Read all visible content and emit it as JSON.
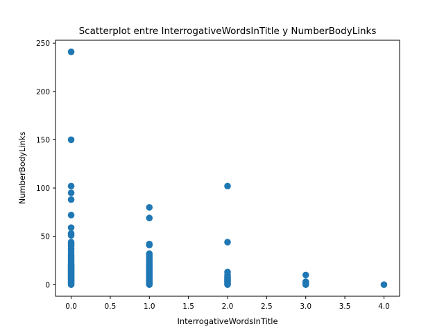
{
  "chart_data": {
    "type": "scatter",
    "title": "Scatterplot entre InterrogativeWordsInTitle y NumberBodyLinks",
    "xlabel": "InterrogativeWordsInTitle",
    "ylabel": "NumberBodyLinks",
    "xlim": [
      -0.2,
      4.2
    ],
    "ylim": [
      -12,
      253
    ],
    "xticks": [
      0.0,
      0.5,
      1.0,
      1.5,
      2.0,
      2.5,
      3.0,
      3.5,
      4.0
    ],
    "xtick_labels": [
      "0.0",
      "0.5",
      "1.0",
      "1.5",
      "2.0",
      "2.5",
      "3.0",
      "3.5",
      "4.0"
    ],
    "yticks": [
      0,
      50,
      100,
      150,
      200,
      250
    ],
    "ytick_labels": [
      "0",
      "50",
      "100",
      "150",
      "200",
      "250"
    ],
    "grid": false,
    "marker_color": "#1f77b4",
    "points": [
      [
        0,
        241
      ],
      [
        0,
        150
      ],
      [
        0,
        102
      ],
      [
        0,
        95
      ],
      [
        0,
        88
      ],
      [
        0,
        72
      ],
      [
        0,
        59
      ],
      [
        0,
        53
      ],
      [
        0,
        51
      ],
      [
        0,
        44
      ],
      [
        0,
        42
      ],
      [
        0,
        40
      ],
      [
        0,
        37
      ],
      [
        0,
        34
      ],
      [
        0,
        31
      ],
      [
        0,
        29
      ],
      [
        0,
        27
      ],
      [
        0,
        25
      ],
      [
        0,
        23
      ],
      [
        0,
        21
      ],
      [
        0,
        20
      ],
      [
        0,
        19
      ],
      [
        0,
        18
      ],
      [
        0,
        17
      ],
      [
        0,
        16
      ],
      [
        0,
        15
      ],
      [
        0,
        14
      ],
      [
        0,
        13
      ],
      [
        0,
        12
      ],
      [
        0,
        11
      ],
      [
        0,
        10
      ],
      [
        0,
        9
      ],
      [
        0,
        8
      ],
      [
        0,
        7
      ],
      [
        0,
        6
      ],
      [
        0,
        5
      ],
      [
        0,
        4
      ],
      [
        0,
        3
      ],
      [
        0,
        2
      ],
      [
        0,
        1
      ],
      [
        0,
        0
      ],
      [
        1,
        80
      ],
      [
        1,
        69
      ],
      [
        1,
        42
      ],
      [
        1,
        41
      ],
      [
        1,
        32
      ],
      [
        1,
        30
      ],
      [
        1,
        28
      ],
      [
        1,
        26
      ],
      [
        1,
        24
      ],
      [
        1,
        22
      ],
      [
        1,
        20
      ],
      [
        1,
        18
      ],
      [
        1,
        17
      ],
      [
        1,
        16
      ],
      [
        1,
        15
      ],
      [
        1,
        14
      ],
      [
        1,
        13
      ],
      [
        1,
        12
      ],
      [
        1,
        11
      ],
      [
        1,
        10
      ],
      [
        1,
        9
      ],
      [
        1,
        8
      ],
      [
        1,
        7
      ],
      [
        1,
        6
      ],
      [
        1,
        5
      ],
      [
        1,
        4
      ],
      [
        1,
        3
      ],
      [
        1,
        2
      ],
      [
        1,
        1
      ],
      [
        1,
        0
      ],
      [
        2,
        102
      ],
      [
        2,
        44
      ],
      [
        2,
        13
      ],
      [
        2,
        10
      ],
      [
        2,
        8
      ],
      [
        2,
        7
      ],
      [
        2,
        6
      ],
      [
        2,
        5
      ],
      [
        2,
        4
      ],
      [
        2,
        3
      ],
      [
        2,
        2
      ],
      [
        2,
        1
      ],
      [
        2,
        0
      ],
      [
        3,
        10
      ],
      [
        3,
        3
      ],
      [
        3,
        2
      ],
      [
        3,
        1
      ],
      [
        3,
        0
      ],
      [
        4,
        0
      ]
    ]
  }
}
